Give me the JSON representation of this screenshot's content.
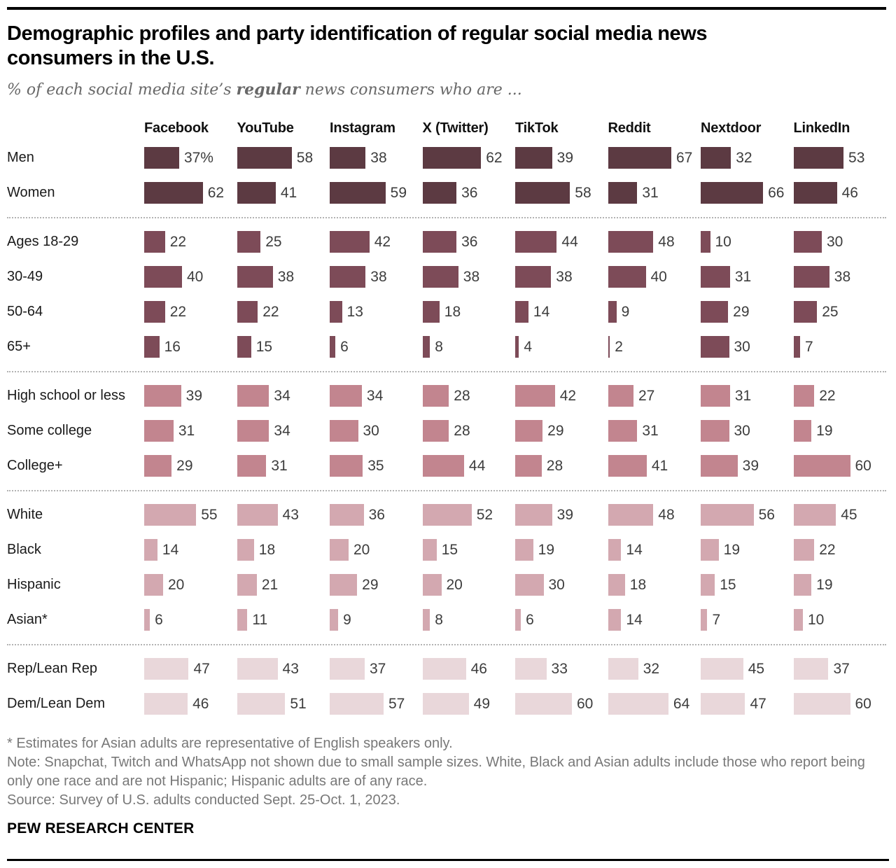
{
  "header": {
    "title_lines": [
      "Demographic profiles and party identification of regular social media news",
      "consumers in the U.S."
    ],
    "subtitle": {
      "prefix": "% of each social media site’s ",
      "bold": "regular",
      "suffix": " news consumers who are ..."
    }
  },
  "chart_data": {
    "type": "bar",
    "unit": "%",
    "orientation": "horizontal",
    "value_suffix_first_cell": "%",
    "columns": [
      "Facebook",
      "YouTube",
      "Instagram",
      "X (Twitter)",
      "TikTok",
      "Reddit",
      "Nextdoor",
      "LinkedIn"
    ],
    "groups": [
      {
        "name": "gender",
        "color": "#5c3a42",
        "rows": [
          {
            "label": "Men",
            "values": [
              37,
              58,
              38,
              62,
              39,
              67,
              32,
              53
            ]
          },
          {
            "label": "Women",
            "values": [
              62,
              41,
              59,
              36,
              58,
              31,
              66,
              46
            ]
          }
        ]
      },
      {
        "name": "age",
        "color": "#7d4b58",
        "rows": [
          {
            "label": "Ages 18-29",
            "values": [
              22,
              25,
              42,
              36,
              44,
              48,
              10,
              30
            ]
          },
          {
            "label": "30-49",
            "values": [
              40,
              38,
              38,
              38,
              38,
              40,
              31,
              38
            ]
          },
          {
            "label": "50-64",
            "values": [
              22,
              22,
              13,
              18,
              14,
              9,
              29,
              25
            ]
          },
          {
            "label": "65+",
            "values": [
              16,
              15,
              6,
              8,
              4,
              2,
              30,
              7
            ]
          }
        ]
      },
      {
        "name": "education",
        "color": "#c2858f",
        "rows": [
          {
            "label": "High school or less",
            "values": [
              39,
              34,
              34,
              28,
              42,
              27,
              31,
              22
            ]
          },
          {
            "label": "Some college",
            "values": [
              31,
              34,
              30,
              28,
              29,
              31,
              30,
              19
            ]
          },
          {
            "label": "College+",
            "values": [
              29,
              31,
              35,
              44,
              28,
              41,
              39,
              60
            ]
          }
        ]
      },
      {
        "name": "race-ethnicity",
        "color": "#d3a8b0",
        "rows": [
          {
            "label": "White",
            "values": [
              55,
              43,
              36,
              52,
              39,
              48,
              56,
              45
            ]
          },
          {
            "label": "Black",
            "values": [
              14,
              18,
              20,
              15,
              19,
              14,
              19,
              22
            ]
          },
          {
            "label": "Hispanic",
            "values": [
              20,
              21,
              29,
              20,
              30,
              18,
              15,
              19
            ]
          },
          {
            "label": "Asian*",
            "values": [
              6,
              11,
              9,
              8,
              6,
              14,
              7,
              10
            ]
          }
        ]
      },
      {
        "name": "party",
        "color": "#e9d7da",
        "rows": [
          {
            "label": "Rep/Lean Rep",
            "values": [
              47,
              43,
              37,
              46,
              33,
              32,
              45,
              37
            ]
          },
          {
            "label": "Dem/Lean Dem",
            "values": [
              46,
              51,
              57,
              49,
              60,
              64,
              47,
              60
            ]
          }
        ]
      }
    ]
  },
  "footer": {
    "lines": [
      "* Estimates for Asian adults are representative of English speakers only.",
      "Note: Snapchat, Twitch and WhatsApp not shown due to small sample sizes. White, Black and Asian adults include those who report being",
      "only one race and are not Hispanic; Hispanic adults are of any race.",
      "Source: Survey of U.S. adults conducted Sept. 25-Oct. 1, 2023."
    ],
    "brand": "PEW RESEARCH CENTER"
  }
}
